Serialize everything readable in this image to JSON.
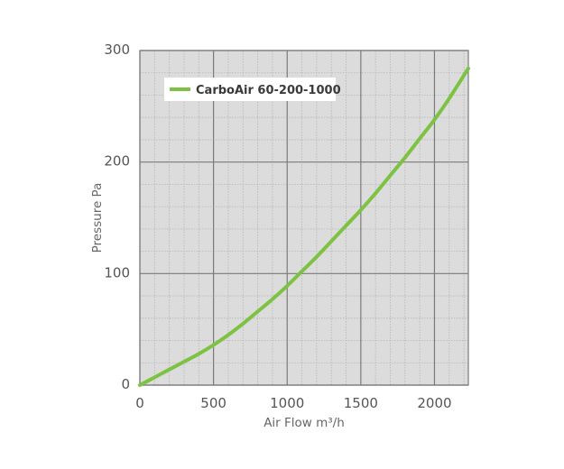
{
  "chart_data": {
    "type": "line",
    "xlabel": "Air Flow m³/h",
    "ylabel": "Pressure Pa",
    "xlim": [
      0,
      2230
    ],
    "ylim": [
      0,
      300
    ],
    "x_ticks": [
      0,
      500,
      1000,
      1500,
      2000
    ],
    "y_ticks": [
      0,
      100,
      200,
      300
    ],
    "x_minor_step": 100,
    "y_minor_step": 20,
    "grid": true,
    "legend": "top-left",
    "series": [
      {
        "name": "CarboAir 60-200-1000",
        "color": "#7dc242",
        "x": [
          0,
          100,
          200,
          300,
          400,
          500,
          600,
          700,
          800,
          900,
          1000,
          1100,
          1200,
          1300,
          1400,
          1500,
          1600,
          1700,
          1800,
          1900,
          2000,
          2100,
          2230
        ],
        "y": [
          0,
          7,
          14,
          21,
          28,
          36,
          45,
          55,
          66,
          77,
          89,
          102,
          115,
          129,
          143,
          157,
          172,
          188,
          204,
          221,
          238,
          257,
          284
        ]
      }
    ]
  },
  "colors": {
    "plot_background": "#dcdcdc",
    "major_grid": "#7a7a7a",
    "minor_grid": "#b5b5b5",
    "axis_text": "#555555"
  }
}
